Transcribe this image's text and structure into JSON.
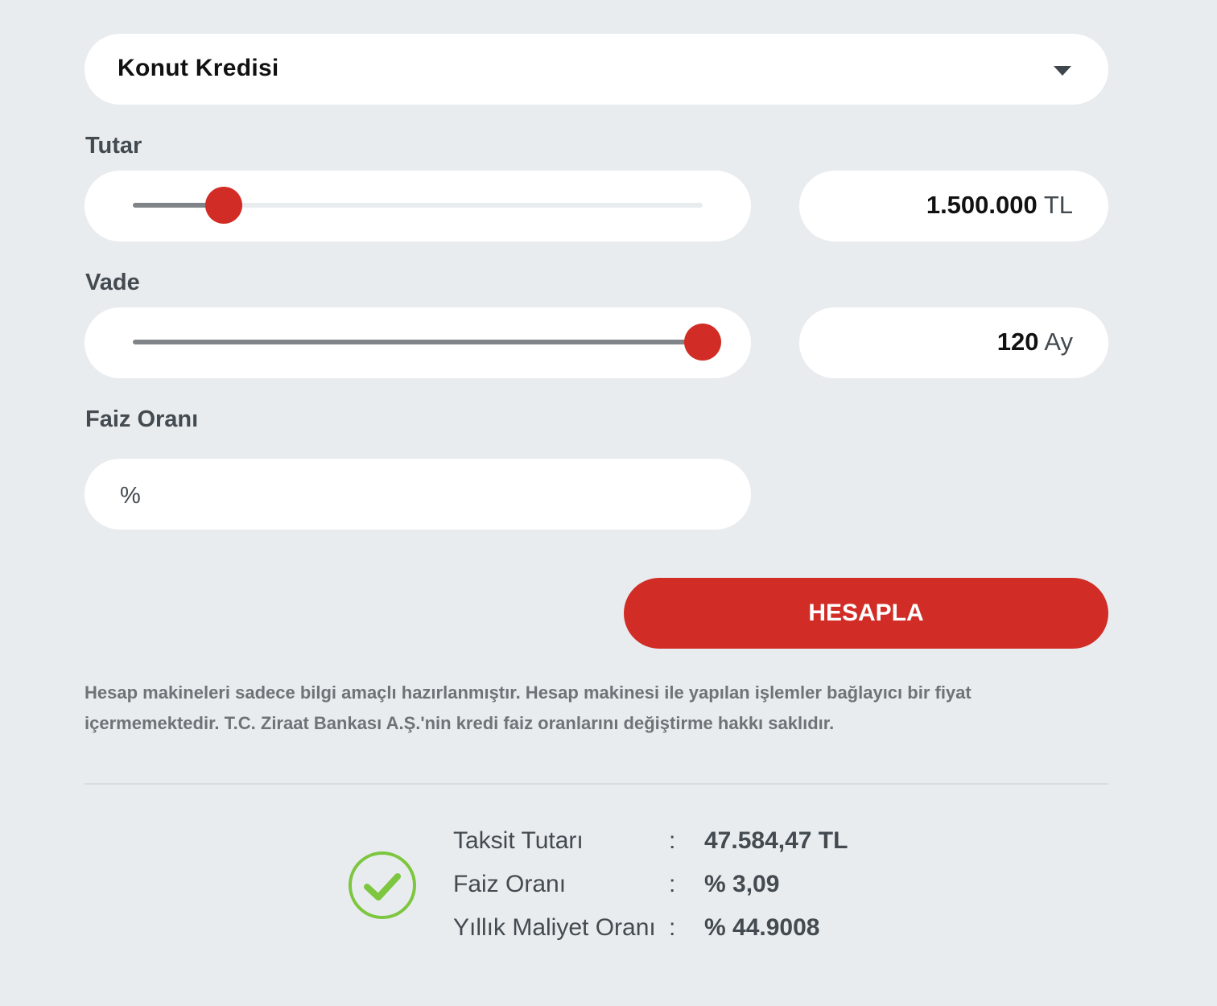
{
  "loan_type": {
    "selected": "Konut Kredisi",
    "icon": "caret-down-icon"
  },
  "amount": {
    "label": "Tutar",
    "value": "1.500.000",
    "unit": "TL",
    "slider_fraction": 0.16
  },
  "term": {
    "label": "Vade",
    "value": "120",
    "unit": "Ay",
    "slider_fraction": 1.0
  },
  "rate": {
    "label": "Faiz Oranı",
    "prefix": "%",
    "value": ""
  },
  "calculate_label": "HESAPLA",
  "disclaimer": "Hesap makineleri sadece bilgi amaçlı hazırlanmıştır. Hesap makinesi ile yapılan işlemler bağlayıcı bir fiyat içermemektedir. T.C. Ziraat Bankası A.Ş.'nin kredi faiz oranlarını değiştirme hakkı saklıdır.",
  "results": [
    {
      "label": "Taksit Tutarı",
      "sep": ":",
      "value": "47.584,47 TL"
    },
    {
      "label": "Faiz Oranı",
      "sep": ":",
      "value": "% 3,09"
    },
    {
      "label": "Yıllık Maliyet Oranı",
      "sep": ":",
      "value": "% 44.9008"
    }
  ],
  "colors": {
    "accent": "#d12d26",
    "success": "#7dc63f",
    "background": "#e9ecef"
  }
}
